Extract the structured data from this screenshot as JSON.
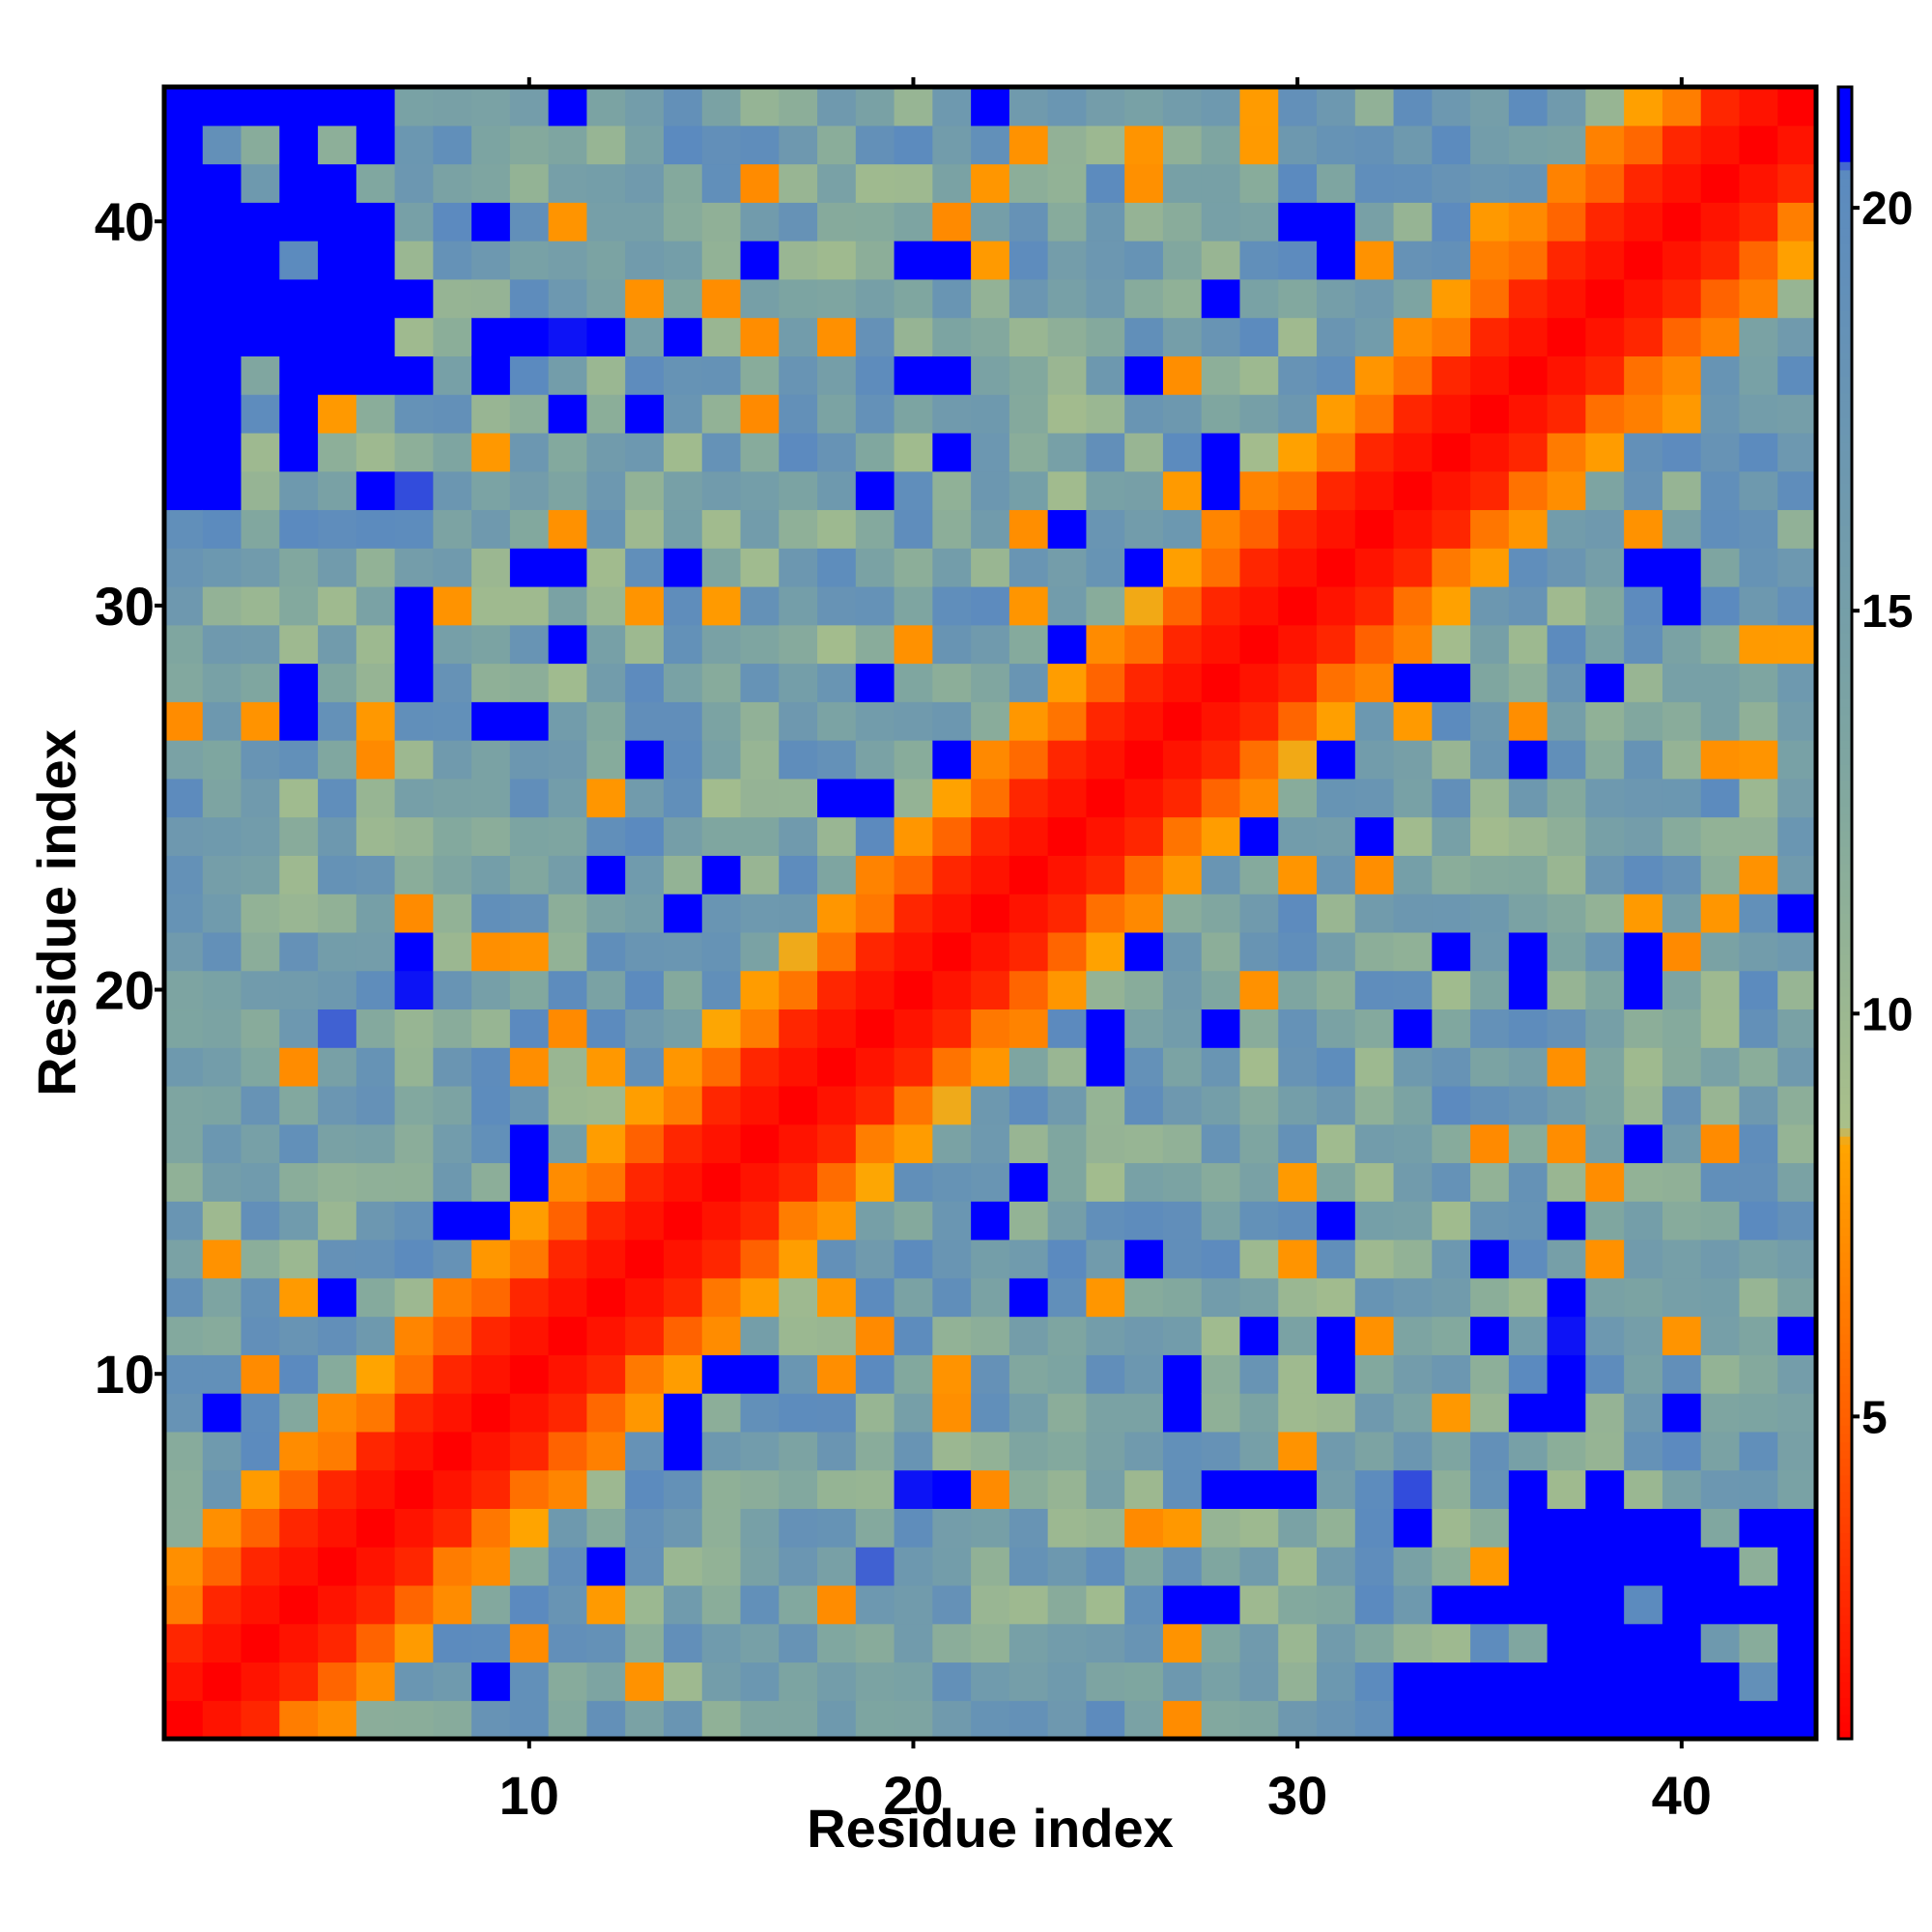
{
  "chart_data": {
    "type": "heatmap",
    "title": "",
    "xlabel": "Residue index",
    "ylabel": "Residue index",
    "n_residues": 43,
    "xlim": [
      0.5,
      43.5
    ],
    "ylim": [
      0.5,
      43.5
    ],
    "x_ticks": [
      10,
      20,
      30,
      40
    ],
    "y_ticks": [
      10,
      20,
      30,
      40
    ],
    "colorbar": {
      "min": 1,
      "max": 21.5,
      "ticks": [
        5,
        10,
        15,
        20
      ],
      "stops": [
        {
          "value": 1,
          "color": "#ff0000"
        },
        {
          "value": 5,
          "color": "#ff6000"
        },
        {
          "value": 8.4,
          "color": "#ffa500"
        },
        {
          "value": 8.6,
          "color": "#a9c08a"
        },
        {
          "value": 13,
          "color": "#7fa6a0"
        },
        {
          "value": 20.5,
          "color": "#5b8abf"
        },
        {
          "value": 20.6,
          "color": "#0000ff"
        },
        {
          "value": 21.5,
          "color": "#0000ff"
        }
      ]
    },
    "colors": {
      "blue_far": "#0000ff",
      "steelblue": "#5b8abf",
      "slate": "#7aa0ae",
      "sage": "#a9c08a",
      "orange": "#ffa500",
      "dark_orange": "#ff6000",
      "red_near": "#ff0000"
    },
    "value_summary": "Symmetric residue distance matrix: values ~1-3 on the diagonal band |i-j|<=2 (red), ~5-8 for |i-j|=3-4 (orange), ~9-20 elsewhere (sage/steelblue), and saturated >20.5 in the far off-diagonal corners (blue)."
  }
}
